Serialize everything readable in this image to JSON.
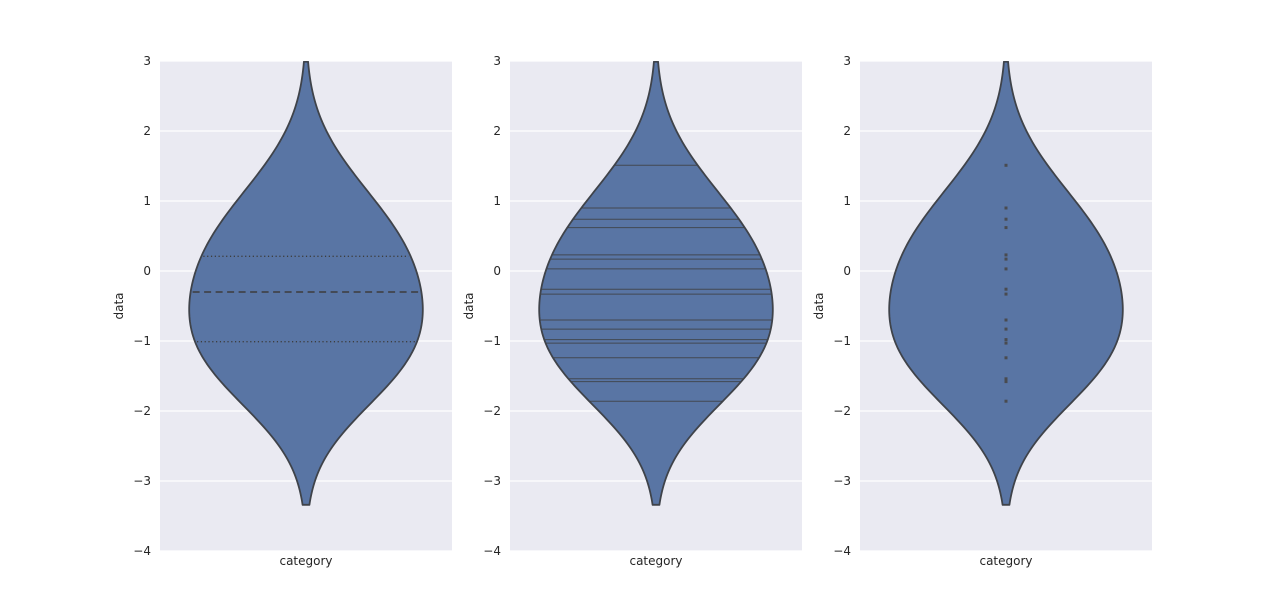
{
  "figure": {
    "style": "seaborn-darkgrid",
    "background": "#ffffff",
    "axes_background": "#eaeaf2",
    "grid_color": "#ffffff"
  },
  "palette": {
    "violin_fill": "#5975a4",
    "violin_edge": "#3f434a",
    "inner_line_color": "#3d3d3d",
    "point_color": "#474747",
    "text_color": "#262626"
  },
  "chart_data": [
    {
      "type": "violin",
      "inner": "quartile",
      "xlabel": "category",
      "ylabel": "data",
      "categories": [
        "category"
      ],
      "ylim": [
        -4,
        3
      ],
      "yticks": [
        3,
        2,
        1,
        0,
        -1,
        -2,
        -3,
        -4
      ],
      "grid": true,
      "legend": "none",
      "bandwidth": 0.74,
      "violin_width_fraction": 0.8,
      "observations": [
        1.51,
        0.9,
        0.74,
        0.62,
        0.23,
        0.17,
        0.03,
        -0.26,
        -0.33,
        -0.7,
        -0.83,
        -0.98,
        -1.03,
        -1.24,
        -1.54,
        -1.58,
        -1.86
      ],
      "quartiles": {
        "q1": -1.01,
        "median": -0.3,
        "q3": 0.21
      }
    },
    {
      "type": "violin",
      "inner": "stick",
      "xlabel": "category",
      "ylabel": "data",
      "categories": [
        "category"
      ],
      "ylim": [
        -4,
        3
      ],
      "yticks": [
        3,
        2,
        1,
        0,
        -1,
        -2,
        -3,
        -4
      ],
      "grid": true,
      "legend": "none",
      "bandwidth": 0.74,
      "violin_width_fraction": 0.8,
      "observations": [
        1.51,
        0.9,
        0.74,
        0.62,
        0.23,
        0.17,
        0.03,
        -0.26,
        -0.33,
        -0.7,
        -0.83,
        -0.98,
        -1.03,
        -1.24,
        -1.54,
        -1.58,
        -1.86
      ]
    },
    {
      "type": "violin",
      "inner": "point",
      "xlabel": "category",
      "ylabel": "data",
      "categories": [
        "category"
      ],
      "ylim": [
        -4,
        3
      ],
      "yticks": [
        3,
        2,
        1,
        0,
        -1,
        -2,
        -3,
        -4
      ],
      "grid": true,
      "legend": "none",
      "bandwidth": 0.74,
      "violin_width_fraction": 0.8,
      "observations": [
        1.51,
        0.9,
        0.74,
        0.62,
        0.23,
        0.17,
        0.03,
        -0.26,
        -0.33,
        -0.7,
        -0.83,
        -0.98,
        -1.03,
        -1.24,
        -1.54,
        -1.58,
        -1.86
      ]
    }
  ]
}
